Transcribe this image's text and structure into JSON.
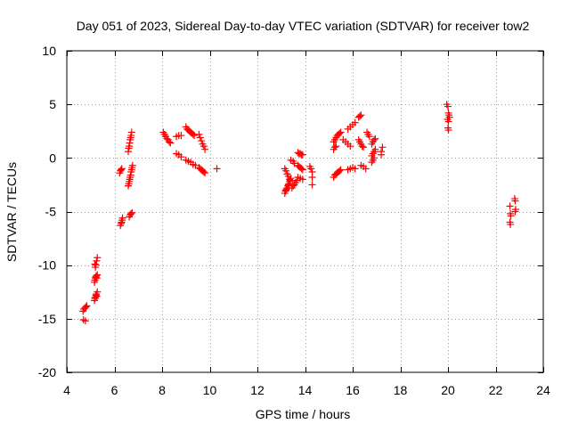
{
  "chart_data": {
    "type": "scatter",
    "title": "Day 051 of 2023, Sidereal Day-to-day VTEC variation (SDTVAR) for receiver tow2",
    "xlabel": "GPS time / hours",
    "ylabel": "SDTVAR / TECUs",
    "xlim": [
      4,
      24
    ],
    "ylim": [
      -20,
      10
    ],
    "xticks": [
      4,
      6,
      8,
      10,
      12,
      14,
      16,
      18,
      20,
      22,
      24
    ],
    "yticks": [
      -20,
      -15,
      -10,
      -5,
      0,
      5,
      10
    ],
    "grid": true,
    "marker": "plus",
    "color": "#ff0000",
    "series": [
      {
        "name": "SDTVAR",
        "points": [
          [
            4.68,
            -14.3
          ],
          [
            4.72,
            -14.1
          ],
          [
            4.76,
            -14.0
          ],
          [
            4.8,
            -13.9
          ],
          [
            4.84,
            -13.8
          ],
          [
            4.7,
            -15.1
          ],
          [
            4.78,
            -15.2
          ],
          [
            5.18,
            -9.9
          ],
          [
            5.2,
            -10.2
          ],
          [
            5.22,
            -10.0
          ],
          [
            5.25,
            -9.6
          ],
          [
            5.28,
            -9.3
          ],
          [
            5.16,
            -11.6
          ],
          [
            5.18,
            -11.4
          ],
          [
            5.2,
            -11.2
          ],
          [
            5.22,
            -11.1
          ],
          [
            5.24,
            -11.0
          ],
          [
            5.26,
            -11.2
          ],
          [
            5.28,
            -10.9
          ],
          [
            5.16,
            -13.3
          ],
          [
            5.18,
            -13.1
          ],
          [
            5.2,
            -13.0
          ],
          [
            5.22,
            -12.8
          ],
          [
            5.24,
            -12.7
          ],
          [
            5.26,
            -12.9
          ],
          [
            5.28,
            -12.5
          ],
          [
            6.25,
            -6.3
          ],
          [
            6.28,
            -6.1
          ],
          [
            6.3,
            -6.0
          ],
          [
            6.32,
            -5.8
          ],
          [
            6.34,
            -5.6
          ],
          [
            6.22,
            -1.4
          ],
          [
            6.25,
            -1.2
          ],
          [
            6.28,
            -1.1
          ],
          [
            6.31,
            -1.0
          ],
          [
            6.58,
            0.6
          ],
          [
            6.6,
            0.9
          ],
          [
            6.62,
            1.1
          ],
          [
            6.64,
            1.4
          ],
          [
            6.66,
            1.7
          ],
          [
            6.68,
            1.9
          ],
          [
            6.7,
            2.1
          ],
          [
            6.72,
            2.4
          ],
          [
            6.58,
            -2.6
          ],
          [
            6.6,
            -2.4
          ],
          [
            6.62,
            -2.2
          ],
          [
            6.64,
            -2.0
          ],
          [
            6.66,
            -1.8
          ],
          [
            6.68,
            -1.6
          ],
          [
            6.7,
            -1.3
          ],
          [
            6.72,
            -1.1
          ],
          [
            6.74,
            -0.9
          ],
          [
            6.76,
            -0.7
          ],
          [
            6.62,
            -5.5
          ],
          [
            6.66,
            -5.3
          ],
          [
            6.7,
            -5.2
          ],
          [
            6.74,
            -5.1
          ],
          [
            8.05,
            2.4
          ],
          [
            8.1,
            2.2
          ],
          [
            8.15,
            2.0
          ],
          [
            8.2,
            1.8
          ],
          [
            8.25,
            1.7
          ],
          [
            8.3,
            1.5
          ],
          [
            8.35,
            1.4
          ],
          [
            8.6,
            2.0
          ],
          [
            8.7,
            2.1
          ],
          [
            8.8,
            2.1
          ],
          [
            8.6,
            0.4
          ],
          [
            8.7,
            0.3
          ],
          [
            8.8,
            0.1
          ],
          [
            9.0,
            2.9
          ],
          [
            9.05,
            2.7
          ],
          [
            9.1,
            2.6
          ],
          [
            9.15,
            2.5
          ],
          [
            9.2,
            2.4
          ],
          [
            9.25,
            2.3
          ],
          [
            9.3,
            2.2
          ],
          [
            9.35,
            2.1
          ],
          [
            9.0,
            -0.2
          ],
          [
            9.1,
            -0.3
          ],
          [
            9.2,
            -0.4
          ],
          [
            9.3,
            -0.6
          ],
          [
            9.4,
            -0.7
          ],
          [
            9.55,
            2.2
          ],
          [
            9.6,
            1.9
          ],
          [
            9.65,
            1.6
          ],
          [
            9.7,
            1.3
          ],
          [
            9.75,
            1.1
          ],
          [
            9.8,
            0.8
          ],
          [
            9.55,
            -0.9
          ],
          [
            9.6,
            -1.0
          ],
          [
            9.65,
            -1.1
          ],
          [
            9.7,
            -1.2
          ],
          [
            9.75,
            -1.3
          ],
          [
            9.8,
            -1.4
          ],
          [
            10.3,
            -1.0
          ],
          [
            13.15,
            -3.3
          ],
          [
            13.18,
            -3.1
          ],
          [
            13.2,
            -3.0
          ],
          [
            13.22,
            -2.9
          ],
          [
            13.25,
            -2.8
          ],
          [
            13.28,
            -2.6
          ],
          [
            13.3,
            -2.5
          ],
          [
            13.32,
            -2.4
          ],
          [
            13.35,
            -2.2
          ],
          [
            13.38,
            -2.1
          ],
          [
            13.4,
            -1.9
          ],
          [
            13.15,
            -1.0
          ],
          [
            13.2,
            -1.2
          ],
          [
            13.25,
            -1.5
          ],
          [
            13.3,
            -1.7
          ],
          [
            13.35,
            -2.0
          ],
          [
            13.45,
            -2.8
          ],
          [
            13.5,
            -2.6
          ],
          [
            13.55,
            -2.5
          ],
          [
            13.6,
            -2.3
          ],
          [
            13.65,
            -2.1
          ],
          [
            13.4,
            -0.2
          ],
          [
            13.5,
            -0.3
          ],
          [
            13.55,
            -0.5
          ],
          [
            13.7,
            0.5
          ],
          [
            13.75,
            0.4
          ],
          [
            13.8,
            0.4
          ],
          [
            13.85,
            0.3
          ],
          [
            13.9,
            0.3
          ],
          [
            13.7,
            -0.7
          ],
          [
            13.75,
            -0.8
          ],
          [
            13.8,
            -0.9
          ],
          [
            13.85,
            -1.0
          ],
          [
            13.9,
            -1.1
          ],
          [
            13.7,
            -1.8
          ],
          [
            13.8,
            -1.9
          ],
          [
            13.9,
            -2.0
          ],
          [
            14.2,
            -0.8
          ],
          [
            14.25,
            -1.0
          ],
          [
            14.3,
            -1.3
          ],
          [
            14.3,
            -1.8
          ],
          [
            14.3,
            -2.5
          ],
          [
            15.2,
            1.5
          ],
          [
            15.25,
            1.7
          ],
          [
            15.3,
            1.9
          ],
          [
            15.35,
            2.1
          ],
          [
            15.4,
            2.2
          ],
          [
            15.45,
            2.3
          ],
          [
            15.5,
            2.4
          ],
          [
            15.2,
            0.8
          ],
          [
            15.25,
            1.0
          ],
          [
            15.3,
            1.1
          ],
          [
            15.2,
            -1.8
          ],
          [
            15.25,
            -1.6
          ],
          [
            15.3,
            -1.5
          ],
          [
            15.35,
            -1.4
          ],
          [
            15.4,
            -1.3
          ],
          [
            15.45,
            -1.2
          ],
          [
            15.5,
            -1.1
          ],
          [
            15.6,
            1.7
          ],
          [
            15.7,
            1.5
          ],
          [
            15.8,
            1.3
          ],
          [
            15.9,
            1.1
          ],
          [
            15.8,
            2.7
          ],
          [
            15.9,
            2.9
          ],
          [
            16.0,
            3.1
          ],
          [
            16.1,
            3.3
          ],
          [
            15.8,
            -1.1
          ],
          [
            15.9,
            -1.0
          ],
          [
            16.0,
            -0.9
          ],
          [
            16.1,
            -1.0
          ],
          [
            16.25,
            1.7
          ],
          [
            16.3,
            1.5
          ],
          [
            16.35,
            1.3
          ],
          [
            16.4,
            1.1
          ],
          [
            16.45,
            1.0
          ],
          [
            16.25,
            3.8
          ],
          [
            16.3,
            3.9
          ],
          [
            16.35,
            4.0
          ],
          [
            16.35,
            -0.7
          ],
          [
            16.45,
            -0.8
          ],
          [
            16.55,
            -1.0
          ],
          [
            16.6,
            2.4
          ],
          [
            16.65,
            2.2
          ],
          [
            16.7,
            2.0
          ],
          [
            16.8,
            1.3
          ],
          [
            16.85,
            1.5
          ],
          [
            16.9,
            1.7
          ],
          [
            16.95,
            1.8
          ],
          [
            16.8,
            0.2
          ],
          [
            16.85,
            0.4
          ],
          [
            16.9,
            0.6
          ],
          [
            16.95,
            0.8
          ],
          [
            16.8,
            -0.4
          ],
          [
            16.85,
            -0.2
          ],
          [
            16.9,
            0.0
          ],
          [
            17.2,
            0.6
          ],
          [
            17.25,
            1.0
          ],
          [
            17.2,
            0.3
          ],
          [
            19.95,
            5.0
          ],
          [
            20.0,
            4.8
          ],
          [
            20.02,
            4.2
          ],
          [
            20.04,
            4.0
          ],
          [
            20.06,
            3.8
          ],
          [
            19.98,
            3.6
          ],
          [
            20.02,
            3.4
          ],
          [
            20.0,
            2.8
          ],
          [
            20.02,
            2.6
          ],
          [
            22.6,
            -4.5
          ],
          [
            22.62,
            -5.2
          ],
          [
            22.64,
            -5.4
          ],
          [
            22.6,
            -6.0
          ],
          [
            22.62,
            -6.2
          ],
          [
            22.8,
            -3.8
          ],
          [
            22.82,
            -4.0
          ],
          [
            22.84,
            -4.8
          ],
          [
            22.82,
            -5.0
          ]
        ]
      }
    ]
  }
}
